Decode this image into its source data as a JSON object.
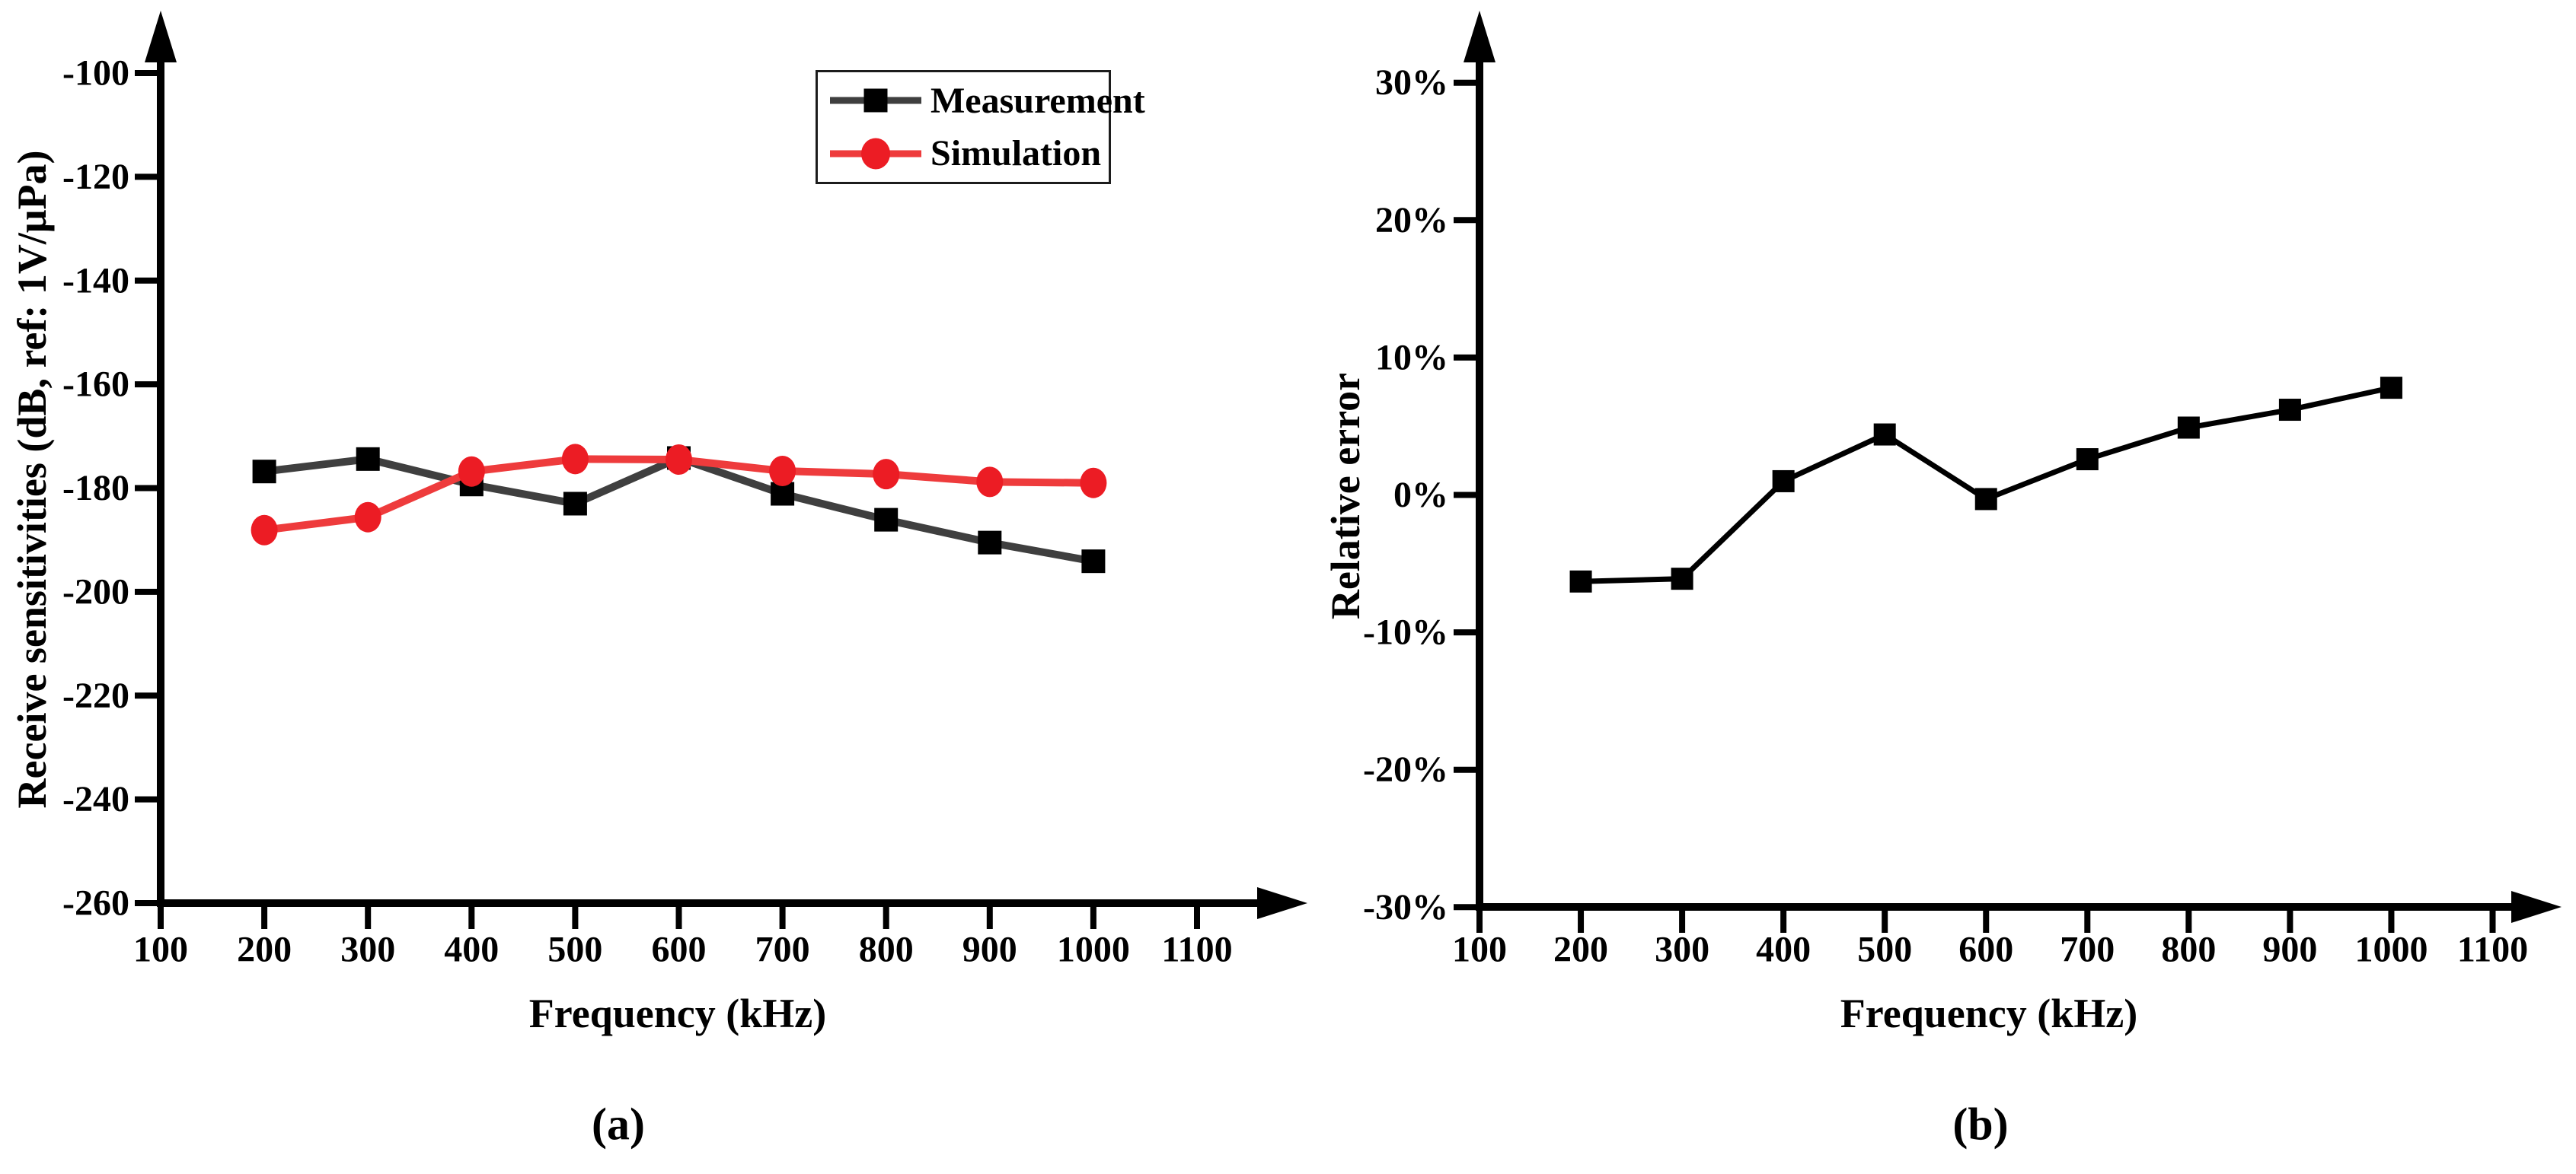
{
  "figure": {
    "caption_a": "(a)",
    "caption_b": "(b)"
  },
  "colors": {
    "background": "#ffffff",
    "axis": "#000000",
    "measurement_line": "#3f3f3f",
    "measurement_marker": "#000000",
    "simulation_line": "#ee3b3c",
    "simulation_marker": "#ec1c24",
    "error_line": "#000000",
    "legend_border": "#1c1c1c"
  },
  "chart_data": [
    {
      "id": "chart-a",
      "type": "line",
      "title": "",
      "xlabel": "Frequency (kHz)",
      "ylabel": "Receive sensitivities (dB, ref: 1V/μPa)",
      "xlim": [
        100,
        1210
      ],
      "ylim": [
        -260,
        -90
      ],
      "grid": false,
      "legend_position": "top-right",
      "x_ticks": [
        100,
        200,
        300,
        400,
        500,
        600,
        700,
        800,
        900,
        1000,
        1100
      ],
      "x_tick_labels": [
        "100",
        "200",
        "300",
        "400",
        "500",
        "600",
        "700",
        "800",
        "900",
        "1000",
        "1100"
      ],
      "y_ticks": [
        -100,
        -120,
        -140,
        -160,
        -180,
        -200,
        -220,
        -240,
        -260
      ],
      "y_tick_labels": [
        "-100",
        "-120",
        "-140",
        "-160",
        "-180",
        "-200",
        "-220",
        "-240",
        "-260"
      ],
      "x": [
        200,
        300,
        400,
        500,
        600,
        700,
        800,
        900,
        1000
      ],
      "series": [
        {
          "name": "Measurement",
          "marker": "square",
          "line_color": "#3f3f3f",
          "marker_color": "#000000",
          "values": [
            -176.8,
            -174.4,
            -179.3,
            -183.0,
            -174.2,
            -181.1,
            -186.1,
            -190.5,
            -194.1
          ]
        },
        {
          "name": "Simulation",
          "marker": "circle",
          "line_color": "#ee3b3c",
          "marker_color": "#ec1c24",
          "values": [
            -188.1,
            -185.6,
            -176.8,
            -174.4,
            -174.5,
            -176.7,
            -177.3,
            -178.8,
            -179.0
          ]
        }
      ]
    },
    {
      "id": "chart-b",
      "type": "line",
      "title": "",
      "xlabel": "Frequency (kHz)",
      "ylabel": "Relative error",
      "xlim": [
        100,
        1210
      ],
      "ylim": [
        -30,
        32
      ],
      "grid": false,
      "legend_position": "none",
      "x_ticks": [
        100,
        200,
        300,
        400,
        500,
        600,
        700,
        800,
        900,
        1000,
        1100
      ],
      "x_tick_labels": [
        "100",
        "200",
        "300",
        "400",
        "500",
        "600",
        "700",
        "800",
        "900",
        "1000",
        "1100"
      ],
      "y_ticks": [
        30,
        20,
        10,
        0,
        -10,
        -20,
        -30
      ],
      "y_tick_labels": [
        "30%",
        "20%",
        "10%",
        "0%",
        "-10%",
        "-20%",
        "-30%"
      ],
      "x": [
        200,
        300,
        400,
        500,
        600,
        700,
        800,
        900,
        1000
      ],
      "series": [
        {
          "name": "Relative error",
          "marker": "square",
          "line_color": "#000000",
          "marker_color": "#000000",
          "values": [
            -6.3,
            -6.1,
            1.0,
            4.4,
            -0.3,
            2.6,
            4.9,
            6.2,
            7.8
          ]
        }
      ]
    }
  ]
}
